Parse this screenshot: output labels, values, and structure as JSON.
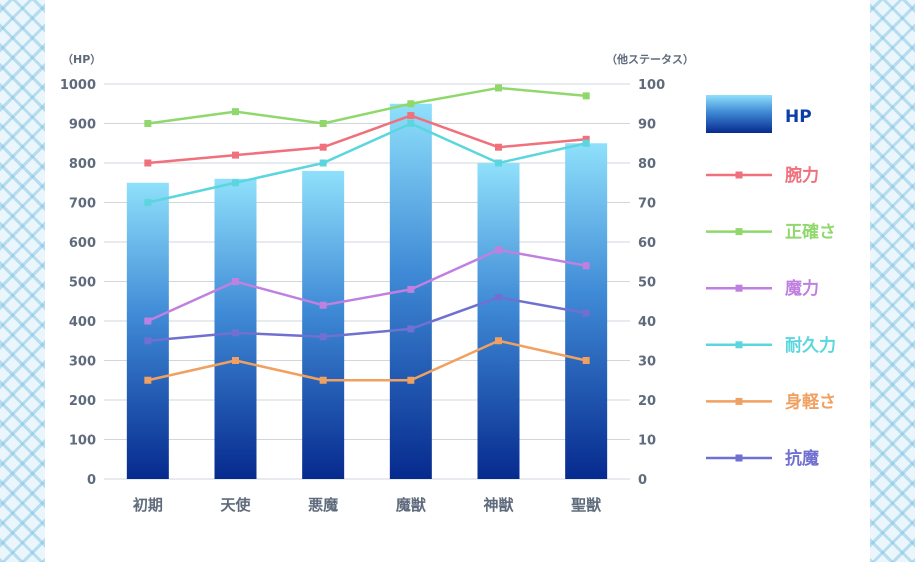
{
  "chart_data": {
    "type": "bar+line",
    "categories": [
      "初期",
      "天使",
      "悪魔",
      "魔獣",
      "神獣",
      "聖獣"
    ],
    "left_axis": {
      "unit_label": "（HP）",
      "ylim": [
        0,
        1000
      ],
      "ticks": [
        0,
        100,
        200,
        300,
        400,
        500,
        600,
        700,
        800,
        900,
        1000
      ]
    },
    "right_axis": {
      "unit_label": "（他ステータス）",
      "ylim": [
        0,
        100
      ],
      "ticks": [
        0,
        10,
        20,
        30,
        40,
        50,
        60,
        70,
        80,
        90,
        100
      ]
    },
    "bar_series": {
      "name": "HP",
      "values": [
        750,
        760,
        780,
        950,
        800,
        850
      ],
      "color_top": "#8fe0fb",
      "color_bottom": "#062a8e",
      "legend_text_color": "#0b3fa6"
    },
    "line_series": [
      {
        "name": "腕力",
        "values": [
          80,
          82,
          84,
          92,
          84,
          86
        ],
        "color": "#f0707c"
      },
      {
        "name": "正確さ",
        "values": [
          90,
          93,
          90,
          95,
          99,
          97
        ],
        "color": "#90d86c"
      },
      {
        "name": "魔力",
        "values": [
          40,
          50,
          44,
          48,
          58,
          54
        ],
        "color": "#c080e0"
      },
      {
        "name": "耐久力",
        "values": [
          70,
          75,
          80,
          90,
          80,
          85
        ],
        "color": "#5cd6de"
      },
      {
        "name": "身軽さ",
        "values": [
          25,
          30,
          25,
          25,
          35,
          30
        ],
        "color": "#f0a060"
      },
      {
        "name": "抗魔",
        "values": [
          35,
          37,
          36,
          38,
          46,
          42
        ],
        "color": "#7070d0"
      }
    ],
    "grid": true,
    "legend_position": "right"
  }
}
